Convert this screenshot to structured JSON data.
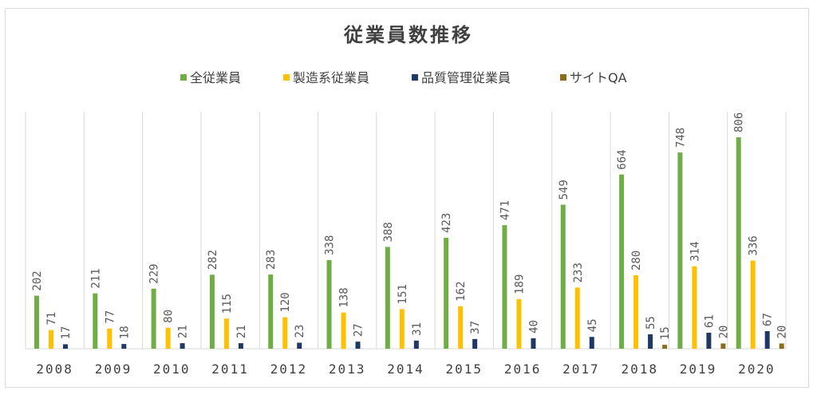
{
  "chart_data": {
    "type": "bar",
    "title": "従業員数推移",
    "xlabel": "",
    "ylabel": "",
    "categories": [
      "2008",
      "2009",
      "2010",
      "2011",
      "2012",
      "2013",
      "2014",
      "2015",
      "2016",
      "2017",
      "2018",
      "2019",
      "2020"
    ],
    "series": [
      {
        "name": "全従業員",
        "color": "#70ad47",
        "values": [
          202,
          211,
          229,
          282,
          283,
          338,
          388,
          423,
          471,
          549,
          664,
          748,
          806
        ]
      },
      {
        "name": "製造系従業員",
        "color": "#ffc000",
        "values": [
          71,
          77,
          80,
          115,
          120,
          138,
          151,
          162,
          189,
          233,
          280,
          314,
          336
        ]
      },
      {
        "name": "品質管理従業員",
        "color": "#203864",
        "values": [
          17,
          18,
          21,
          21,
          23,
          27,
          31,
          37,
          40,
          45,
          55,
          61,
          67
        ]
      },
      {
        "name": "サイトQA",
        "color": "#8c6d1f",
        "values": [
          null,
          null,
          null,
          null,
          null,
          null,
          null,
          null,
          null,
          null,
          15,
          20,
          20
        ]
      }
    ],
    "ylim": [
      0,
      900
    ],
    "grid": "vertical",
    "legend_position": "top"
  }
}
